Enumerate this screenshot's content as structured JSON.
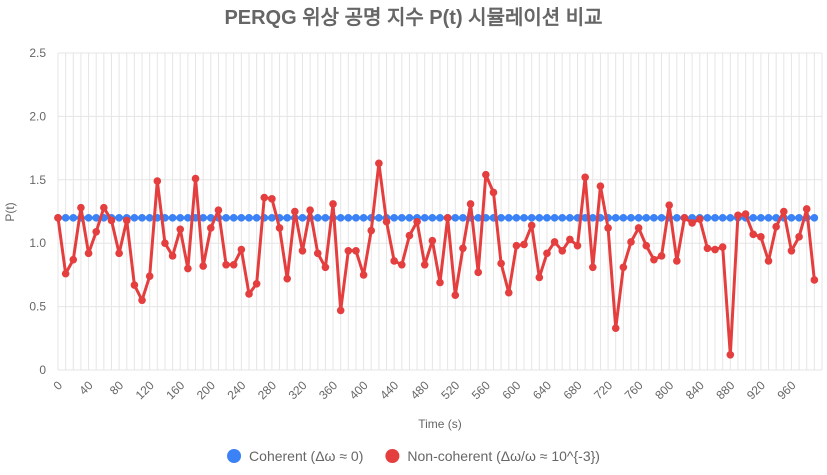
{
  "chart_data": {
    "type": "line",
    "title": "PERQG 위상 공명 지수 P(t) 시뮬레이션 비교",
    "xlabel": "Time (s)",
    "ylabel": "P(t)",
    "ylim": [
      0,
      2.5
    ],
    "yticks": [
      "0",
      "0.5",
      "1.0",
      "1.5",
      "2.0",
      "2.5"
    ],
    "xlim": [
      0,
      1000
    ],
    "xticks": [
      "0",
      "40",
      "80",
      "120",
      "160",
      "200",
      "240",
      "280",
      "320",
      "360",
      "400",
      "440",
      "480",
      "520",
      "560",
      "600",
      "640",
      "680",
      "720",
      "760",
      "800",
      "840",
      "880",
      "920",
      "960"
    ],
    "grid": true,
    "legend_position": "bottom",
    "x": [
      0,
      10,
      20,
      30,
      40,
      50,
      60,
      70,
      80,
      90,
      100,
      110,
      120,
      130,
      140,
      150,
      160,
      170,
      180,
      190,
      200,
      210,
      220,
      230,
      240,
      250,
      260,
      270,
      280,
      290,
      300,
      310,
      320,
      330,
      340,
      350,
      360,
      370,
      380,
      390,
      400,
      410,
      420,
      430,
      440,
      450,
      460,
      470,
      480,
      490,
      500,
      510,
      520,
      530,
      540,
      550,
      560,
      570,
      580,
      590,
      600,
      610,
      620,
      630,
      640,
      650,
      660,
      670,
      680,
      690,
      700,
      710,
      720,
      730,
      740,
      750,
      760,
      770,
      780,
      790,
      800,
      810,
      820,
      830,
      840,
      850,
      860,
      870,
      880,
      890,
      900,
      910,
      920,
      930,
      940,
      950,
      960,
      970,
      980,
      990
    ],
    "series": [
      {
        "name": "Coherent (Δω ≈ 0)",
        "color": "#3b82f6",
        "values": [
          1.2,
          1.2,
          1.2,
          1.2,
          1.2,
          1.2,
          1.2,
          1.2,
          1.2,
          1.2,
          1.2,
          1.2,
          1.2,
          1.2,
          1.2,
          1.2,
          1.2,
          1.2,
          1.2,
          1.2,
          1.2,
          1.2,
          1.2,
          1.2,
          1.2,
          1.2,
          1.2,
          1.2,
          1.2,
          1.2,
          1.2,
          1.2,
          1.2,
          1.2,
          1.2,
          1.2,
          1.2,
          1.2,
          1.2,
          1.2,
          1.2,
          1.2,
          1.2,
          1.2,
          1.2,
          1.2,
          1.2,
          1.2,
          1.2,
          1.2,
          1.2,
          1.2,
          1.2,
          1.2,
          1.2,
          1.2,
          1.2,
          1.2,
          1.2,
          1.2,
          1.2,
          1.2,
          1.2,
          1.2,
          1.2,
          1.2,
          1.2,
          1.2,
          1.2,
          1.2,
          1.2,
          1.2,
          1.2,
          1.2,
          1.2,
          1.2,
          1.2,
          1.2,
          1.2,
          1.2,
          1.2,
          1.2,
          1.2,
          1.2,
          1.2,
          1.2,
          1.2,
          1.2,
          1.2,
          1.2,
          1.2,
          1.2,
          1.2,
          1.2,
          1.2,
          1.2,
          1.2,
          1.2,
          1.2,
          1.2
        ]
      },
      {
        "name": "Non-coherent (Δω/ω ≈ 10^{-3})",
        "color": "#e53e3e",
        "values": [
          1.2,
          0.76,
          0.87,
          1.28,
          0.92,
          1.09,
          1.28,
          1.18,
          0.92,
          1.18,
          0.67,
          0.55,
          0.74,
          1.49,
          1.0,
          0.9,
          1.11,
          0.8,
          1.51,
          0.82,
          1.12,
          1.26,
          0.83,
          0.83,
          0.95,
          0.6,
          0.68,
          1.36,
          1.35,
          1.12,
          0.72,
          1.25,
          0.94,
          1.26,
          0.92,
          0.81,
          1.31,
          0.47,
          0.94,
          0.94,
          0.75,
          1.1,
          1.63,
          1.17,
          0.86,
          0.83,
          1.06,
          1.17,
          0.83,
          1.02,
          0.69,
          1.2,
          0.59,
          0.96,
          1.31,
          0.77,
          1.54,
          1.4,
          0.84,
          0.61,
          0.98,
          0.99,
          1.14,
          0.73,
          0.92,
          1.01,
          0.94,
          1.03,
          0.98,
          1.52,
          0.81,
          1.45,
          1.12,
          0.33,
          0.81,
          1.01,
          1.12,
          0.98,
          0.87,
          0.9,
          1.3,
          0.86,
          1.2,
          1.16,
          1.19,
          0.96,
          0.95,
          0.97,
          0.12,
          1.22,
          1.23,
          1.07,
          1.05,
          0.86,
          1.13,
          1.25,
          0.94,
          1.05,
          1.27,
          0.71
        ]
      }
    ]
  }
}
